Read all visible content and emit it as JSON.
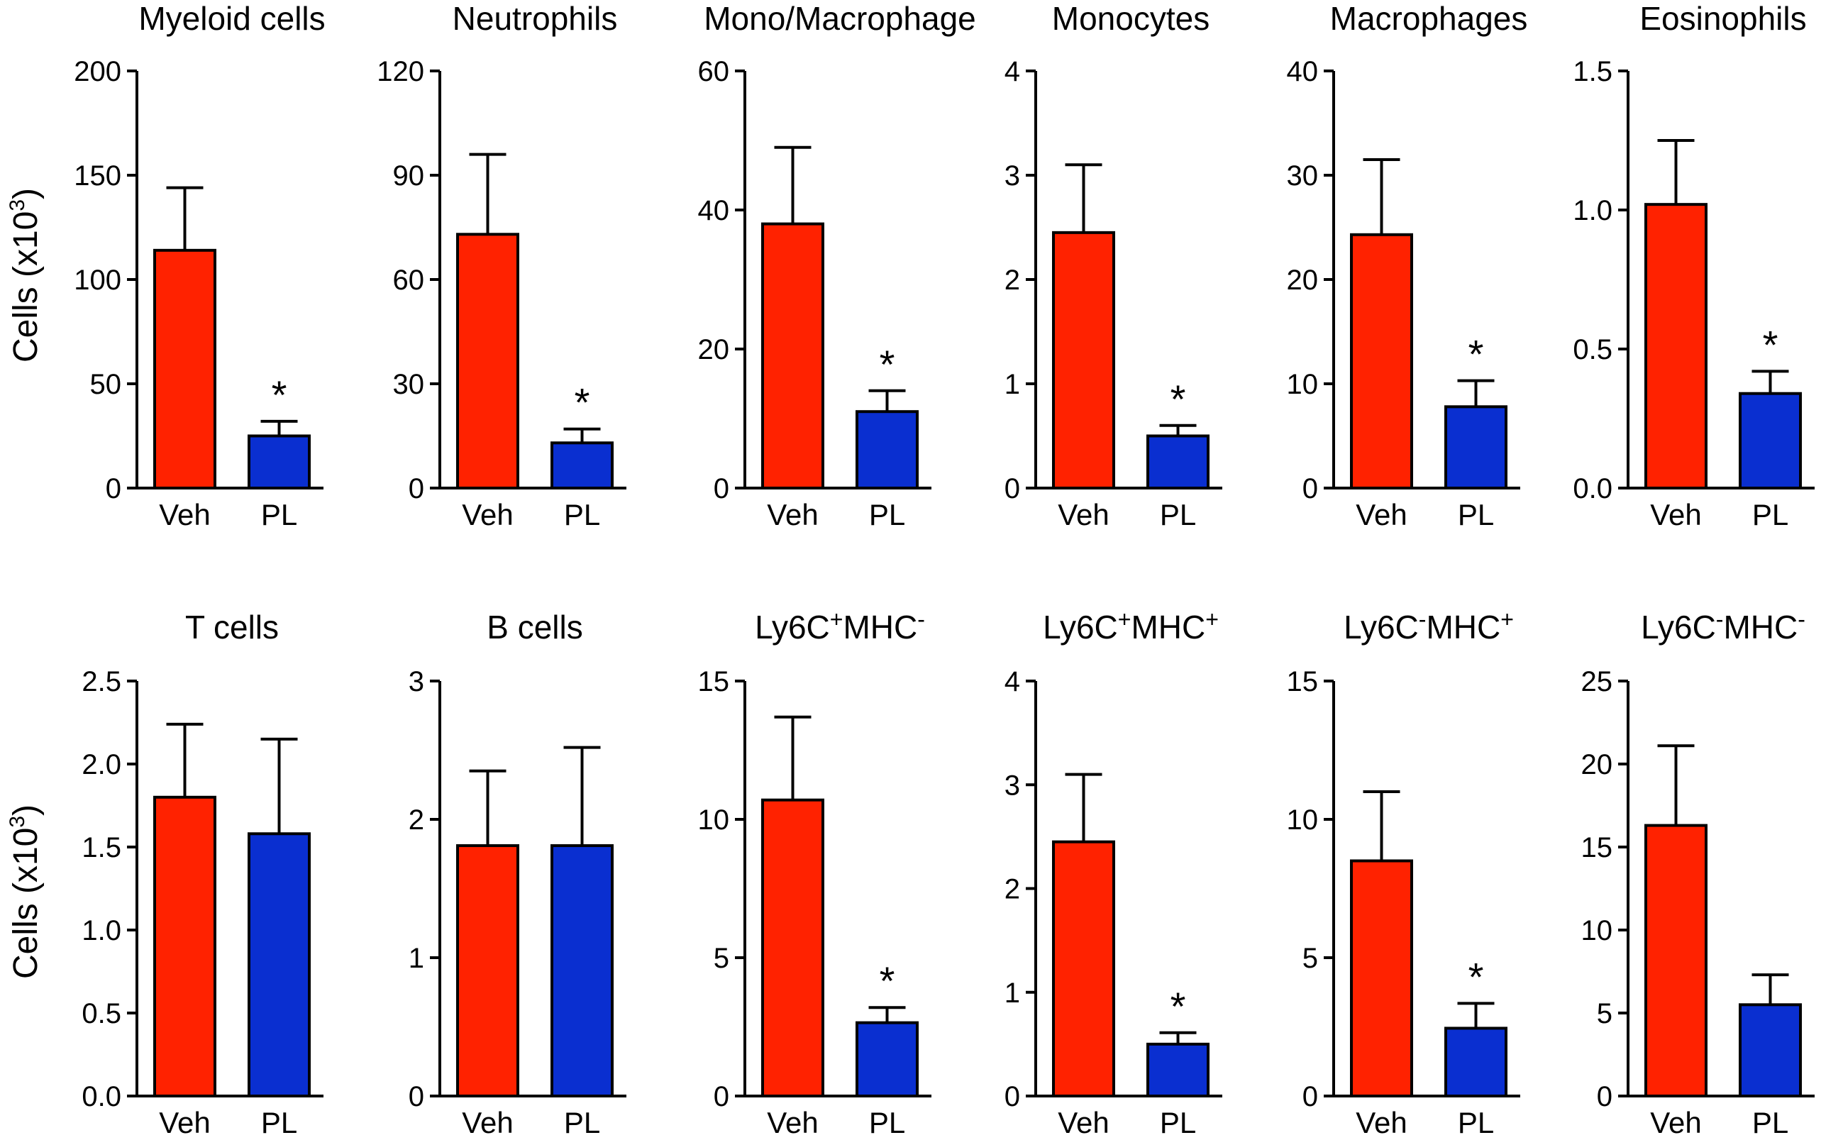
{
  "y_axis_label": "Cells (x10",
  "y_axis_label_superscript": "3",
  "y_axis_label_close": ")",
  "colors": {
    "veh": "#ff2200",
    "pl": "#0a2fd0",
    "axis": "#000000"
  },
  "chart_data": [
    {
      "type": "bar",
      "title": "Myeloid cells",
      "categories": [
        "Veh",
        "PL"
      ],
      "values": [
        114,
        25
      ],
      "errors": [
        30,
        7
      ],
      "significant": [
        false,
        true
      ],
      "ylim": [
        0,
        200
      ],
      "yticks": [
        "0",
        "50",
        "100",
        "150",
        "200"
      ]
    },
    {
      "type": "bar",
      "title": "Neutrophils",
      "categories": [
        "Veh",
        "PL"
      ],
      "values": [
        73,
        13
      ],
      "errors": [
        23,
        4
      ],
      "significant": [
        false,
        true
      ],
      "ylim": [
        0,
        120
      ],
      "yticks": [
        "0",
        "30",
        "60",
        "90",
        "120"
      ]
    },
    {
      "type": "bar",
      "title": "Mono/Macrophage",
      "categories": [
        "Veh",
        "PL"
      ],
      "values": [
        38,
        11
      ],
      "errors": [
        11,
        3
      ],
      "significant": [
        false,
        true
      ],
      "ylim": [
        0,
        60
      ],
      "yticks": [
        "0",
        "20",
        "40",
        "60"
      ]
    },
    {
      "type": "bar",
      "title": "Monocytes",
      "categories": [
        "Veh",
        "PL"
      ],
      "values": [
        2.45,
        0.5
      ],
      "errors": [
        0.65,
        0.1
      ],
      "significant": [
        false,
        true
      ],
      "ylim": [
        0,
        4
      ],
      "yticks": [
        "0",
        "1",
        "2",
        "3",
        "4"
      ]
    },
    {
      "type": "bar",
      "title": "Macrophages",
      "categories": [
        "Veh",
        "PL"
      ],
      "values": [
        24.3,
        7.8
      ],
      "errors": [
        7.2,
        2.5
      ],
      "significant": [
        false,
        true
      ],
      "ylim": [
        0,
        40
      ],
      "yticks": [
        "0",
        "10",
        "20",
        "30",
        "40"
      ]
    },
    {
      "type": "bar",
      "title": "Eosinophils",
      "categories": [
        "Veh",
        "PL"
      ],
      "values": [
        1.02,
        0.34
      ],
      "errors": [
        0.23,
        0.08
      ],
      "significant": [
        false,
        true
      ],
      "ylim": [
        0,
        1.5
      ],
      "yticks": [
        "0.0",
        "0.5",
        "1.0",
        "1.5"
      ]
    },
    {
      "type": "bar",
      "title": "T cells",
      "categories": [
        "Veh",
        "PL"
      ],
      "values": [
        1.8,
        1.58
      ],
      "errors": [
        0.44,
        0.57
      ],
      "significant": [
        false,
        false
      ],
      "ylim": [
        0,
        2.5
      ],
      "yticks": [
        "0.0",
        "0.5",
        "1.0",
        "1.5",
        "2.0",
        "2.5"
      ]
    },
    {
      "type": "bar",
      "title": "B cells",
      "categories": [
        "Veh",
        "PL"
      ],
      "values": [
        1.81,
        1.81
      ],
      "errors": [
        0.54,
        0.71
      ],
      "significant": [
        false,
        false
      ],
      "ylim": [
        0,
        3
      ],
      "yticks": [
        "0",
        "1",
        "2",
        "3"
      ]
    },
    {
      "type": "bar",
      "title": "Ly6C",
      "title_sup1": "+",
      "title_mid": "MHC",
      "title_sup2": "-",
      "categories": [
        "Veh",
        "PL"
      ],
      "values": [
        10.7,
        2.65
      ],
      "errors": [
        3.0,
        0.55
      ],
      "significant": [
        false,
        true
      ],
      "ylim": [
        0,
        15
      ],
      "yticks": [
        "0",
        "5",
        "10",
        "15"
      ]
    },
    {
      "type": "bar",
      "title": "Ly6C",
      "title_sup1": "+",
      "title_mid": "MHC",
      "title_sup2": "+",
      "categories": [
        "Veh",
        "PL"
      ],
      "values": [
        2.45,
        0.5
      ],
      "errors": [
        0.65,
        0.11
      ],
      "significant": [
        false,
        true
      ],
      "ylim": [
        0,
        4
      ],
      "yticks": [
        "0",
        "1",
        "2",
        "3",
        "4"
      ]
    },
    {
      "type": "bar",
      "title": "Ly6C",
      "title_sup1": "-",
      "title_mid": "MHC",
      "title_sup2": "+",
      "categories": [
        "Veh",
        "PL"
      ],
      "values": [
        8.5,
        2.45
      ],
      "errors": [
        2.5,
        0.9
      ],
      "significant": [
        false,
        true
      ],
      "ylim": [
        0,
        15
      ],
      "yticks": [
        "0",
        "5",
        "10",
        "15"
      ]
    },
    {
      "type": "bar",
      "title": "Ly6C",
      "title_sup1": "-",
      "title_mid": "MHC",
      "title_sup2": "-",
      "categories": [
        "Veh",
        "PL"
      ],
      "values": [
        16.3,
        5.5
      ],
      "errors": [
        4.8,
        1.8
      ],
      "significant": [
        false,
        false
      ],
      "ylim": [
        0,
        25
      ],
      "yticks": [
        "0",
        "5",
        "10",
        "15",
        "20",
        "25"
      ]
    }
  ]
}
